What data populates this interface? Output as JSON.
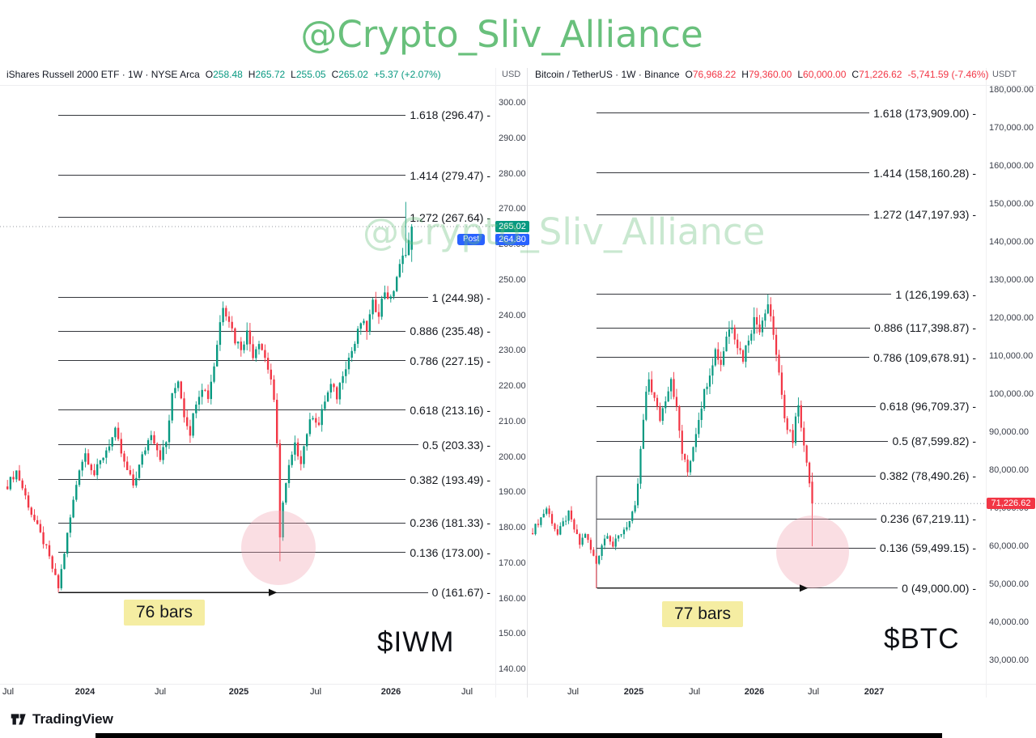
{
  "colors": {
    "up": "#089981",
    "down": "#F23645",
    "accent_blue": "#2962FF",
    "watermark_green": "#69c07c",
    "highlight_yellow": "#f5eda2",
    "highlight_pink": "#f2a0b0",
    "text_dark": "#131722"
  },
  "watermark": {
    "top_text": "@Crypto_Sliv_Alliance",
    "center_text": "@Crypto_Sliv_Alliance"
  },
  "branding": {
    "logo_text": "TradingView"
  },
  "charts": [
    {
      "header": {
        "title_line": "iShares Russell 2000 ETF · 1W · NYSE Arca",
        "ohlc": [
          {
            "k": "O",
            "v": "258.48"
          },
          {
            "k": "H",
            "v": "265.72"
          },
          {
            "k": "L",
            "v": "255.05"
          },
          {
            "k": "C",
            "v": "265.02"
          }
        ],
        "change": "+5.37 (+2.07%)",
        "dir": "up"
      },
      "axis_currency": "USD",
      "price_label": {
        "value": "265.02",
        "price": 265.02,
        "dir": "up"
      },
      "post_label": {
        "badge": "Post",
        "value": "264.80",
        "price": 264.8
      },
      "bars_label": "76 bars",
      "ticker_label": "$IWM",
      "y_ticks": [
        {
          "label": "300.00",
          "value": 300
        },
        {
          "label": "290.00",
          "value": 290
        },
        {
          "label": "280.00",
          "value": 280
        },
        {
          "label": "270.00",
          "value": 270
        },
        {
          "label": "260.00",
          "value": 260
        },
        {
          "label": "250.00",
          "value": 250
        },
        {
          "label": "240.00",
          "value": 240
        },
        {
          "label": "230.00",
          "value": 230
        },
        {
          "label": "220.00",
          "value": 220
        },
        {
          "label": "210.00",
          "value": 210
        },
        {
          "label": "200.00",
          "value": 200
        },
        {
          "label": "190.00",
          "value": 190
        },
        {
          "label": "180.00",
          "value": 180
        },
        {
          "label": "170.00",
          "value": 170
        },
        {
          "label": "160.00",
          "value": 160
        },
        {
          "label": "150.00",
          "value": 150
        },
        {
          "label": "140.00",
          "value": 140
        }
      ],
      "x_ticks": [
        {
          "label": "Jul",
          "x": 10,
          "strong": false
        },
        {
          "label": "2024",
          "x": 105,
          "strong": true
        },
        {
          "label": "Jul",
          "x": 198,
          "strong": false
        },
        {
          "label": "2025",
          "x": 295,
          "strong": true
        },
        {
          "label": "Jul",
          "x": 390,
          "strong": false
        },
        {
          "label": "2026",
          "x": 483,
          "strong": true
        },
        {
          "label": "Jul",
          "x": 577,
          "strong": false
        }
      ],
      "fib_levels": [
        {
          "text": "1.618 (296.47) -",
          "price": 296.47
        },
        {
          "text": "1.414 (279.47) -",
          "price": 279.47
        },
        {
          "text": "1.272 (267.64) -",
          "price": 267.64
        },
        {
          "text": "1 (244.98) -",
          "price": 244.98
        },
        {
          "text": "0.886 (235.48) -",
          "price": 235.48
        },
        {
          "text": "0.786 (227.15) -",
          "price": 227.15
        },
        {
          "text": "0.618 (213.16) -",
          "price": 213.16
        },
        {
          "text": "0.5 (203.33) -",
          "price": 203.33
        },
        {
          "text": "0.382 (193.49) -",
          "price": 193.49
        },
        {
          "text": "0.236 (181.33) -",
          "price": 181.33
        },
        {
          "text": "0.136 (173.00) -",
          "price": 173.0
        },
        {
          "text": "0 (161.67) -",
          "price": 161.67
        }
      ]
    },
    {
      "header": {
        "title_line": "Bitcoin / TetherUS · 1W · Binance",
        "ohlc": [
          {
            "k": "O",
            "v": "76,968.22"
          },
          {
            "k": "H",
            "v": "79,360.00"
          },
          {
            "k": "L",
            "v": "60,000.00"
          },
          {
            "k": "C",
            "v": "71,226.62"
          }
        ],
        "change": "-5,741.59 (-7.46%)",
        "dir": "down"
      },
      "axis_currency": "USDT",
      "price_label": {
        "value": "71,226.62",
        "price": 71226.62,
        "dir": "down"
      },
      "post_label": null,
      "bars_label": "77 bars",
      "ticker_label": "$BTC",
      "y_ticks": [
        {
          "label": "180,000.00",
          "value": 180000
        },
        {
          "label": "170,000.00",
          "value": 170000
        },
        {
          "label": "160,000.00",
          "value": 160000
        },
        {
          "label": "150,000.00",
          "value": 150000
        },
        {
          "label": "140,000.00",
          "value": 140000
        },
        {
          "label": "130,000.00",
          "value": 130000
        },
        {
          "label": "120,000.00",
          "value": 120000
        },
        {
          "label": "110,000.00",
          "value": 110000
        },
        {
          "label": "100,000.00",
          "value": 100000
        },
        {
          "label": "90,000.00",
          "value": 90000
        },
        {
          "label": "80,000.00",
          "value": 80000
        },
        {
          "label": "70,000.00",
          "value": 70000
        },
        {
          "label": "60,000.00",
          "value": 60000
        },
        {
          "label": "50,000.00",
          "value": 50000
        },
        {
          "label": "40,000.00",
          "value": 40000
        },
        {
          "label": "30,000.00",
          "value": 30000
        }
      ],
      "x_ticks": [
        {
          "label": "Jul",
          "x": 708,
          "strong": false
        },
        {
          "label": "2025",
          "x": 783,
          "strong": true
        },
        {
          "label": "Jul",
          "x": 858,
          "strong": false
        },
        {
          "label": "2026",
          "x": 932,
          "strong": true
        },
        {
          "label": "Jul",
          "x": 1005,
          "strong": false
        },
        {
          "label": "2027",
          "x": 1080,
          "strong": true
        }
      ],
      "fib_levels": [
        {
          "text": "1.618 (173,909.00) -",
          "price": 173909.0
        },
        {
          "text": "1.414 (158,160.28) -",
          "price": 158160.28
        },
        {
          "text": "1.272 (147,197.93) -",
          "price": 147197.93
        },
        {
          "text": "1 (126,199.63) -",
          "price": 126199.63
        },
        {
          "text": "0.886 (117,398.87) -",
          "price": 117398.87
        },
        {
          "text": "0.786 (109,678.91) -",
          "price": 109678.91
        },
        {
          "text": "0.618 (96,709.37) -",
          "price": 96709.37
        },
        {
          "text": "0.5 (87,599.82) -",
          "price": 87599.82
        },
        {
          "text": "0.382 (78,490.26) -",
          "price": 78490.26
        },
        {
          "text": "0.236 (67,219.11) -",
          "price": 67219.11
        },
        {
          "text": "0.136 (59,499.15) -",
          "price": 59499.15
        },
        {
          "text": "0 (49,000.00) -",
          "price": 49000.0
        }
      ]
    }
  ],
  "chart_data": [
    {
      "type": "candlestick",
      "symbol": "IWM",
      "title": "iShares Russell 2000 ETF · 1W · NYSE Arca",
      "timeframe": "1W",
      "last_bar": {
        "open": 258.48,
        "high": 265.72,
        "low": 255.05,
        "close": 265.02,
        "change": "+5.37 (+2.07%)"
      },
      "y_axis": {
        "min": 140,
        "max": 300,
        "tick_step": 10,
        "currency": "USD"
      },
      "x_axis_ticks": [
        "Jul",
        "2024",
        "Jul",
        "2025",
        "Jul",
        "2026",
        "Jul"
      ],
      "fib_retracement": {
        "anchor_low_price": 161.67,
        "anchor_high_price": 244.98,
        "levels": [
          [
            1.618,
            296.47
          ],
          [
            1.414,
            279.47
          ],
          [
            1.272,
            267.64
          ],
          [
            1,
            244.98
          ],
          [
            0.886,
            235.48
          ],
          [
            0.786,
            227.15
          ],
          [
            0.618,
            213.16
          ],
          [
            0.5,
            203.33
          ],
          [
            0.382,
            193.49
          ],
          [
            0.236,
            181.33
          ],
          [
            0.136,
            173.0
          ],
          [
            0,
            161.67
          ]
        ]
      },
      "measure_bars": 76,
      "bar_count": 136,
      "approx_close_anchors": [
        [
          0,
          192
        ],
        [
          3,
          196
        ],
        [
          8,
          184
        ],
        [
          13,
          174
        ],
        [
          17,
          163
        ],
        [
          20,
          178
        ],
        [
          24,
          197
        ],
        [
          26,
          201
        ],
        [
          29,
          195
        ],
        [
          33,
          202
        ],
        [
          36,
          207
        ],
        [
          39,
          198
        ],
        [
          42,
          192
        ],
        [
          45,
          200
        ],
        [
          48,
          207
        ],
        [
          51,
          200
        ],
        [
          53,
          204
        ],
        [
          55,
          217
        ],
        [
          57,
          222
        ],
        [
          59,
          212
        ],
        [
          61,
          207
        ],
        [
          63,
          216
        ],
        [
          65,
          220
        ],
        [
          67,
          217
        ],
        [
          69,
          226
        ],
        [
          71,
          238
        ],
        [
          72,
          243
        ],
        [
          74,
          239
        ],
        [
          76,
          233
        ],
        [
          78,
          231
        ],
        [
          80,
          235
        ],
        [
          82,
          229
        ],
        [
          84,
          233
        ],
        [
          86,
          228
        ],
        [
          88,
          222
        ],
        [
          89,
          215
        ],
        [
          90,
          203
        ],
        [
          91,
          178
        ],
        [
          92,
          187
        ],
        [
          94,
          197
        ],
        [
          96,
          203
        ],
        [
          98,
          199
        ],
        [
          100,
          207
        ],
        [
          102,
          212
        ],
        [
          104,
          209
        ],
        [
          106,
          216
        ],
        [
          108,
          220
        ],
        [
          110,
          217
        ],
        [
          112,
          224
        ],
        [
          114,
          228
        ],
        [
          116,
          232
        ],
        [
          118,
          238
        ],
        [
          120,
          236
        ],
        [
          122,
          243
        ],
        [
          124,
          241
        ],
        [
          126,
          247
        ],
        [
          128,
          244
        ],
        [
          130,
          251
        ],
        [
          132,
          256
        ],
        [
          134,
          261
        ],
        [
          135,
          265.02
        ]
      ],
      "overrides": [
        {
          "i": 17,
          "low": 161.67
        },
        {
          "i": 91,
          "low": 170.5
        },
        {
          "i": 133,
          "high": 272
        },
        {
          "i": 135,
          "open": 258.48,
          "high": 265.72,
          "low": 255.05,
          "close": 265.02
        }
      ]
    },
    {
      "type": "candlestick",
      "symbol": "BTCUSDT",
      "title": "Bitcoin / TetherUS · 1W · Binance",
      "timeframe": "1W",
      "last_bar": {
        "open": 76968.22,
        "high": 79360.0,
        "low": 60000.0,
        "close": 71226.62,
        "change": "-5,741.59 (-7.46%)"
      },
      "y_axis": {
        "min": 30000,
        "max": 180000,
        "tick_step": 10000,
        "currency": "USDT"
      },
      "x_axis_ticks": [
        "Jul",
        "2025",
        "Jul",
        "2026",
        "Jul",
        "2027"
      ],
      "fib_retracement": {
        "anchor_low_price": 49000.0,
        "anchor_high_price": 126199.63,
        "levels": [
          [
            1.618,
            173909.0
          ],
          [
            1.414,
            158160.28
          ],
          [
            1.272,
            147197.93
          ],
          [
            1,
            126199.63
          ],
          [
            0.886,
            117398.87
          ],
          [
            0.786,
            109678.91
          ],
          [
            0.618,
            96709.37
          ],
          [
            0.5,
            87599.82
          ],
          [
            0.382,
            78490.26
          ],
          [
            0.236,
            67219.11
          ],
          [
            0.136,
            59499.15
          ],
          [
            0,
            49000.0
          ]
        ]
      },
      "measure_bars": 77,
      "bar_count": 102,
      "approx_close_anchors": [
        [
          0,
          64000
        ],
        [
          3,
          67500
        ],
        [
          5,
          70000
        ],
        [
          7,
          66500
        ],
        [
          9,
          63000
        ],
        [
          11,
          66000
        ],
        [
          13,
          68500
        ],
        [
          15,
          64500
        ],
        [
          17,
          60500
        ],
        [
          19,
          63500
        ],
        [
          21,
          59000
        ],
        [
          23,
          55500
        ],
        [
          25,
          60500
        ],
        [
          27,
          63500
        ],
        [
          29,
          60000
        ],
        [
          31,
          62500
        ],
        [
          33,
          64500
        ],
        [
          35,
          66500
        ],
        [
          37,
          70000
        ],
        [
          38,
          76500
        ],
        [
          39,
          85000
        ],
        [
          40,
          93000
        ],
        [
          41,
          99500
        ],
        [
          42,
          104000
        ],
        [
          44,
          98500
        ],
        [
          46,
          93500
        ],
        [
          48,
          99000
        ],
        [
          50,
          104500
        ],
        [
          52,
          96000
        ],
        [
          54,
          84500
        ],
        [
          56,
          79500
        ],
        [
          58,
          86500
        ],
        [
          60,
          94000
        ],
        [
          62,
          100500
        ],
        [
          64,
          106000
        ],
        [
          66,
          111500
        ],
        [
          68,
          108000
        ],
        [
          70,
          115500
        ],
        [
          72,
          118500
        ],
        [
          74,
          113000
        ],
        [
          76,
          109500
        ],
        [
          78,
          115000
        ],
        [
          80,
          119500
        ],
        [
          82,
          117500
        ],
        [
          84,
          122500
        ],
        [
          85,
          124000
        ],
        [
          86,
          120500
        ],
        [
          87,
          116000
        ],
        [
          88,
          110500
        ],
        [
          89,
          104500
        ],
        [
          90,
          99000
        ],
        [
          91,
          94500
        ],
        [
          92,
          90500
        ],
        [
          93,
          90000
        ],
        [
          94,
          86500
        ],
        [
          95,
          93500
        ],
        [
          96,
          96000
        ],
        [
          97,
          92000
        ],
        [
          98,
          87500
        ],
        [
          99,
          82000
        ],
        [
          100,
          77000
        ],
        [
          101,
          71226.62
        ]
      ],
      "overrides": [
        {
          "i": 23,
          "low": 49000
        },
        {
          "i": 85,
          "high": 126199.63
        },
        {
          "i": 101,
          "open": 76968.22,
          "high": 79360.0,
          "low": 60000.0,
          "close": 71226.62
        }
      ]
    }
  ]
}
